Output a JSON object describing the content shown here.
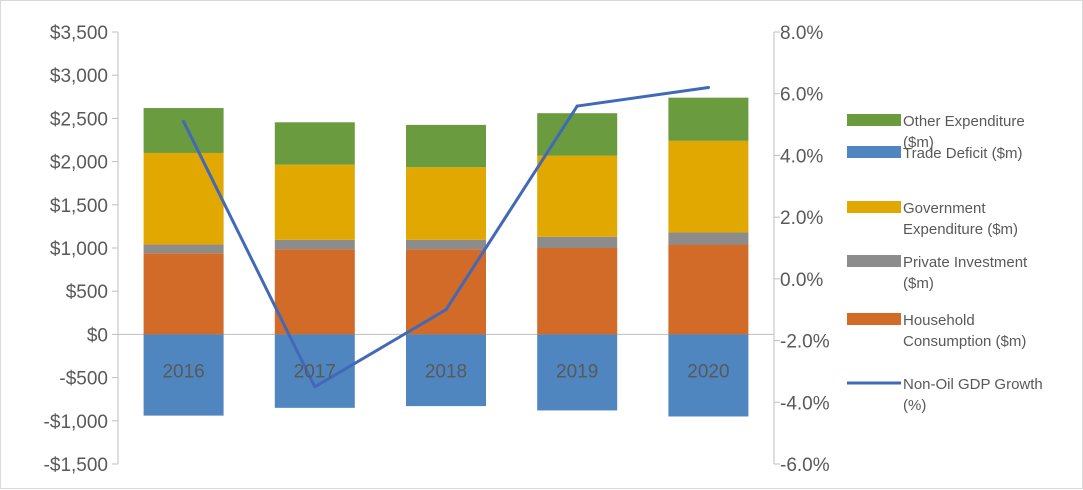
{
  "chart_data": {
    "type": "bar",
    "stacked": true,
    "categories": [
      "2016",
      "2017",
      "2018",
      "2019",
      "2020"
    ],
    "series": [
      {
        "name": "Other Expenditure ($m)",
        "axis": "left",
        "color": "#6a9b3f",
        "values": [
          520,
          490,
          490,
          490,
          500
        ]
      },
      {
        "name": "Trade Deficit ($m)",
        "axis": "left",
        "color": "#4f86c0",
        "values": [
          -940,
          -850,
          -830,
          -880,
          -950
        ]
      },
      {
        "name": "Government Expenditure ($m)",
        "axis": "left",
        "color": "#e0a800",
        "values": [
          1060,
          870,
          840,
          940,
          1060
        ]
      },
      {
        "name": "Private Investment ($m)",
        "axis": "left",
        "color": "#8c8c8c",
        "values": [
          100,
          110,
          110,
          130,
          140
        ]
      },
      {
        "name": "Household Consumption ($m)",
        "axis": "left",
        "color": "#d26b28",
        "values": [
          940,
          985,
          985,
          1000,
          1040
        ]
      },
      {
        "name": "Non-Oil GDP Growth (%)",
        "type": "line",
        "axis": "right",
        "color": "#4269b7",
        "values": [
          5.1,
          -3.5,
          -1.0,
          5.6,
          6.2
        ]
      }
    ],
    "stack_order_bottom_to_top": [
      "Household Consumption ($m)",
      "Private Investment ($m)",
      "Government Expenditure ($m)",
      "Other Expenditure ($m)"
    ],
    "y_left": {
      "lim": [
        -1500,
        3500
      ],
      "ticks": [
        3500,
        3000,
        2500,
        2000,
        1500,
        1000,
        500,
        0,
        -500,
        -1000,
        -1500
      ],
      "tick_labels": [
        "$3,500",
        "$3,000",
        "$2,500",
        "$2,000",
        "$1,500",
        "$1,000",
        "$500",
        "$0",
        "-$500",
        "-$1,000",
        "-$1,500"
      ]
    },
    "y_right": {
      "lim": [
        -6.0,
        8.0
      ],
      "ticks": [
        8,
        6,
        4,
        2,
        0,
        -2,
        -4,
        -6
      ],
      "tick_labels": [
        "8.0%",
        "6.0%",
        "4.0%",
        "2.0%",
        "0.0%",
        "-2.0%",
        "-4.0%",
        "-6.0%"
      ]
    },
    "legend": {
      "position": "right",
      "entries": [
        {
          "lines": [
            "Other Expenditure",
            "($m)"
          ],
          "color": "#6a9b3f",
          "kind": "box"
        },
        {
          "lines": [
            "Trade Deficit ($m)"
          ],
          "color": "#4f86c0",
          "kind": "box"
        },
        {
          "lines": [
            "Government",
            "Expenditure ($m)"
          ],
          "color": "#e0a800",
          "kind": "box"
        },
        {
          "lines": [
            "Private Investment",
            "($m)"
          ],
          "color": "#8c8c8c",
          "kind": "box"
        },
        {
          "lines": [
            "Household",
            "Consumption ($m)"
          ],
          "color": "#d26b28",
          "kind": "box"
        },
        {
          "lines": [
            "Non-Oil GDP Growth",
            "(%)"
          ],
          "color": "#4269b7",
          "kind": "line"
        }
      ]
    },
    "grid": false,
    "title": "",
    "xlabel": "",
    "ylabel": ""
  }
}
